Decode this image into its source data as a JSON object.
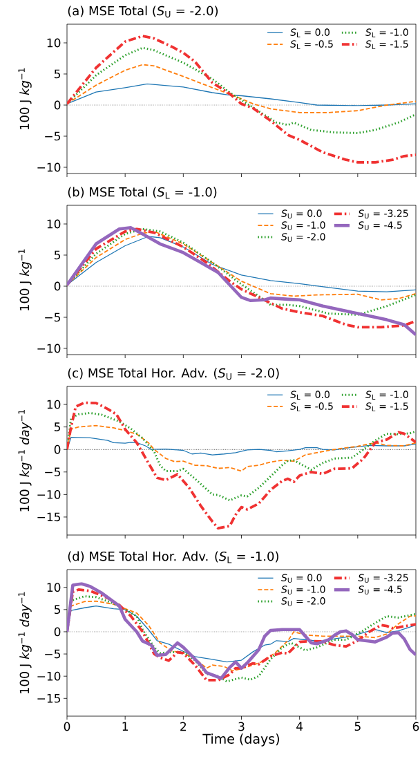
{
  "chart_data": [
    {
      "type": "line",
      "title": "(a) MSE Total (*S*$_{U}$ = -2.0)",
      "ylabel": "100 J *kg*$^{−1}$",
      "xlim": [
        0,
        6
      ],
      "xticks": [
        0,
        1,
        2,
        3,
        4,
        5,
        6
      ],
      "ylim": [
        -11,
        13
      ],
      "yticks": [
        {
          "value": -10,
          "label": "−10"
        },
        {
          "value": -5,
          "label": "−5"
        },
        0,
        5,
        10
      ],
      "tick_labels": "y",
      "legend": "top right",
      "grid": false,
      "ref_lines": [
        {
          "axis": "y",
          "value": 0,
          "color": "#000000",
          "line_style": "dotted"
        }
      ],
      "series": [
        {
          "name": "*S*$_{L}$ = 0.0",
          "color": "#1f77b4",
          "line_style": "solid",
          "x": [
            0,
            0.5,
            1.0,
            1.38,
            2.0,
            2.5,
            2.8,
            3.0,
            3.5,
            4.0,
            4.3,
            5.0,
            5.5,
            6.0
          ],
          "values": [
            0.2,
            2.1,
            2.8,
            3.4,
            2.9,
            2.0,
            1.6,
            1.5,
            1.0,
            0.4,
            0.0,
            -0.1,
            0.0,
            0.2
          ]
        },
        {
          "name": "*S*$_{L}$ = -0.5",
          "color": "#ff7f0e",
          "line_style": "dashed",
          "x": [
            0,
            0.5,
            1.0,
            1.3,
            1.5,
            2.0,
            2.5,
            2.9,
            3.2,
            3.5,
            4.0,
            4.5,
            5.0,
            5.5,
            6.0
          ],
          "values": [
            0.2,
            3.2,
            5.6,
            6.5,
            6.3,
            4.6,
            2.8,
            1.4,
            0.2,
            -0.6,
            -1.2,
            -1.2,
            -0.9,
            0.0,
            0.6
          ]
        },
        {
          "name": "*S*$_{L}$ = -1.0",
          "color": "#2ca02c",
          "line_style": "dotted",
          "x": [
            0,
            0.5,
            1.0,
            1.3,
            1.5,
            2.0,
            2.5,
            2.8,
            3.0,
            3.3,
            3.6,
            3.8,
            3.9,
            4.2,
            4.6,
            5.0,
            5.3,
            5.7,
            6.0
          ],
          "values": [
            0.2,
            4.8,
            8.0,
            9.2,
            8.8,
            6.8,
            4.2,
            2.0,
            0.8,
            -1.0,
            -2.8,
            -3.2,
            -2.8,
            -4.0,
            -4.4,
            -4.5,
            -4.0,
            -2.8,
            -1.5
          ]
        },
        {
          "name": "*S*$_{L}$ = -1.5",
          "color": "#f03232",
          "line_style": "dashdot",
          "x": [
            0,
            0.5,
            1.0,
            1.3,
            1.5,
            1.8,
            2.0,
            2.2,
            2.5,
            2.8,
            3.0,
            3.2,
            3.5,
            3.8,
            4.0,
            4.4,
            4.8,
            5.0,
            5.3,
            5.6,
            5.8,
            6.0
          ],
          "values": [
            0.2,
            6.0,
            10.2,
            11.1,
            10.7,
            9.4,
            8.4,
            7.0,
            3.6,
            1.8,
            0.2,
            -0.5,
            -2.5,
            -4.8,
            -5.6,
            -7.6,
            -8.8,
            -9.2,
            -9.2,
            -8.8,
            -8.2,
            -8.0
          ]
        }
      ]
    },
    {
      "type": "line",
      "title": "(b) MSE Total (*S*$_{L}$ = -1.0)",
      "ylabel": "100 J *kg*$^{−1}$",
      "xlim": [
        0,
        6
      ],
      "xticks": [
        0,
        1,
        2,
        3,
        4,
        5,
        6
      ],
      "ylim": [
        -11,
        13
      ],
      "yticks": [
        {
          "value": -10,
          "label": "−10"
        },
        {
          "value": -5,
          "label": "−5"
        },
        0,
        5,
        10
      ],
      "tick_labels": "y",
      "legend": "top right",
      "grid": false,
      "ref_lines": [
        {
          "axis": "y",
          "value": 0,
          "color": "#000000",
          "line_style": "dotted"
        }
      ],
      "series": [
        {
          "name": "*S*$_{U}$ = 0.0",
          "color": "#1f77b4",
          "line_style": "solid",
          "x": [
            0,
            0.5,
            1.0,
            1.4,
            1.6,
            2.0,
            2.5,
            3.0,
            3.5,
            4.0,
            4.5,
            5.0,
            5.5,
            6.0
          ],
          "values": [
            0.2,
            3.8,
            6.5,
            8.0,
            7.8,
            6.3,
            3.5,
            1.8,
            0.9,
            0.4,
            -0.2,
            -0.8,
            -0.9,
            -0.6
          ]
        },
        {
          "name": "*S*$_{U}$ = -1.0",
          "color": "#ff7f0e",
          "line_style": "dashed",
          "x": [
            0,
            0.5,
            1.0,
            1.3,
            1.5,
            2.0,
            2.5,
            3.0,
            3.5,
            3.9,
            4.3,
            5.0,
            5.4,
            5.7,
            6.0
          ],
          "values": [
            0.2,
            4.6,
            7.5,
            8.5,
            8.8,
            6.8,
            3.8,
            0.8,
            -1.2,
            -1.6,
            -1.4,
            -1.3,
            -2.2,
            -2.0,
            -1.2
          ]
        },
        {
          "name": "*S*$_{U}$ = -2.0",
          "color": "#2ca02c",
          "line_style": "dotted",
          "x": [
            0,
            0.5,
            1.0,
            1.3,
            1.6,
            2.0,
            2.5,
            2.9,
            3.0,
            3.3,
            3.5,
            3.8,
            4.0,
            4.5,
            5.0,
            5.5,
            6.0
          ],
          "values": [
            0.2,
            5.2,
            8.4,
            9.2,
            8.8,
            7.0,
            3.8,
            1.0,
            0.3,
            -1.6,
            -3.0,
            -3.0,
            -3.2,
            -4.4,
            -4.6,
            -3.2,
            -1.4
          ]
        },
        {
          "name": "*S*$_{U}$ = -3.25",
          "color": "#f03232",
          "line_style": "dashdot",
          "x": [
            0,
            0.5,
            1.0,
            1.2,
            1.5,
            2.0,
            2.4,
            2.8,
            3.0,
            3.3,
            3.7,
            4.0,
            4.4,
            4.8,
            5.0,
            5.4,
            5.8,
            6.0
          ],
          "values": [
            0.2,
            6.0,
            8.8,
            9.2,
            8.6,
            6.3,
            3.8,
            0.8,
            -0.5,
            -1.8,
            -3.6,
            -4.2,
            -4.8,
            -6.2,
            -6.6,
            -6.6,
            -6.3,
            -5.6
          ]
        },
        {
          "name": "*S*$_{U}$ = -4.5",
          "color": "#9467bd",
          "line_style": "solid",
          "x": [
            0,
            0.5,
            0.9,
            1.1,
            1.3,
            1.6,
            2.0,
            2.3,
            2.6,
            2.8,
            3.0,
            3.15,
            3.4,
            3.5,
            3.8,
            4.0,
            4.4,
            5.0,
            5.5,
            5.8,
            6.0
          ],
          "values": [
            0.2,
            6.8,
            9.2,
            9.4,
            8.4,
            6.8,
            5.4,
            3.8,
            2.2,
            0.2,
            -1.8,
            -2.3,
            -2.2,
            -1.9,
            -2.1,
            -2.2,
            -3.2,
            -4.4,
            -5.4,
            -6.2,
            -7.8
          ]
        }
      ]
    },
    {
      "type": "line",
      "title": "(c) MSE Total Hor. Adv. (*S*$_{U}$ = -2.0)",
      "ylabel": "100 J *kg*$^{−1}$ *day*$^{−1}$",
      "xlim": [
        0,
        6
      ],
      "xticks": [
        0,
        1,
        2,
        3,
        4,
        5,
        6
      ],
      "ylim": [
        -19,
        14
      ],
      "yticks": [
        {
          "value": -15,
          "label": "−15"
        },
        {
          "value": -10,
          "label": "−10"
        },
        {
          "value": -5,
          "label": "−5"
        },
        0,
        5,
        10
      ],
      "tick_labels": "y",
      "legend": "top right",
      "grid": false,
      "ref_lines": [
        {
          "axis": "y",
          "value": 0,
          "color": "#000000",
          "line_style": "dotted"
        }
      ],
      "series": [
        {
          "name": "*S*$_{L}$ = 0.0",
          "color": "#1f77b4",
          "line_style": "solid",
          "x": [
            0,
            0.07,
            0.4,
            0.7,
            0.8,
            1.0,
            1.1,
            1.2,
            1.35,
            1.45,
            1.7,
            2.0,
            2.15,
            2.3,
            2.5,
            2.7,
            2.9,
            3.1,
            3.3,
            3.5,
            3.6,
            3.8,
            4.0,
            4.1,
            4.3,
            4.4,
            4.6,
            4.8,
            5.0,
            5.2,
            5.5,
            5.8,
            6.0
          ],
          "values": [
            0,
            2.7,
            2.6,
            2.0,
            1.5,
            1.4,
            1.6,
            1.5,
            0.8,
            0.0,
            0.1,
            -0.2,
            -1.0,
            -0.8,
            -1.2,
            -1.0,
            -0.7,
            -0.1,
            0.0,
            -0.2,
            -0.5,
            -0.3,
            0.0,
            0.4,
            0.4,
            0.0,
            -0.1,
            0.3,
            0.6,
            0.9,
            0.8,
            0.8,
            1.2
          ]
        },
        {
          "name": "*S*$_{L}$ = -0.5",
          "color": "#ff7f0e",
          "line_style": "dashed",
          "x": [
            0,
            0.07,
            0.2,
            0.5,
            0.8,
            1.0,
            1.2,
            1.4,
            1.5,
            1.7,
            1.85,
            2.0,
            2.2,
            2.4,
            2.6,
            2.8,
            3.0,
            3.1,
            3.3,
            3.5,
            3.7,
            3.9,
            4.1,
            4.3,
            4.5,
            4.7,
            5.0,
            5.3,
            5.5,
            5.8,
            6.0
          ],
          "values": [
            0,
            4.5,
            5.0,
            5.3,
            4.8,
            4.2,
            3.4,
            1.5,
            0.0,
            -2.0,
            -2.7,
            -2.6,
            -3.5,
            -3.6,
            -4.2,
            -4.0,
            -4.8,
            -3.8,
            -3.5,
            -2.8,
            -2.4,
            -2.6,
            -1.2,
            -0.7,
            -0.2,
            0.2,
            0.7,
            1.5,
            0.9,
            0.8,
            1.5
          ]
        },
        {
          "name": "*S*$_{L}$ = -1.0",
          "color": "#2ca02c",
          "line_style": "dotted",
          "x": [
            0,
            0.07,
            0.2,
            0.4,
            0.6,
            0.9,
            1.1,
            1.3,
            1.5,
            1.6,
            1.7,
            1.9,
            2.0,
            2.2,
            2.5,
            2.6,
            2.8,
            3.0,
            3.1,
            3.3,
            3.5,
            3.7,
            3.8,
            3.9,
            4.1,
            4.2,
            4.4,
            4.6,
            4.9,
            5.1,
            5.3,
            5.5,
            5.7,
            5.9,
            6.0
          ],
          "values": [
            0,
            7.0,
            7.8,
            8.1,
            7.7,
            6.2,
            4.6,
            2.5,
            -0.5,
            -3.5,
            -4.8,
            -4.8,
            -4.3,
            -6.5,
            -10.0,
            -10.1,
            -11.3,
            -10.2,
            -10.4,
            -8.5,
            -6.0,
            -3.5,
            -2.5,
            -2.4,
            -3.8,
            -4.5,
            -3.0,
            -2.0,
            -1.8,
            0.0,
            2.0,
            3.5,
            3.4,
            3.6,
            4.0
          ]
        },
        {
          "name": "*S*$_{L}$ = -1.5",
          "color": "#f03232",
          "line_style": "dashdot",
          "x": [
            0,
            0.07,
            0.15,
            0.3,
            0.5,
            0.7,
            0.85,
            1.0,
            1.2,
            1.4,
            1.55,
            1.7,
            1.9,
            2.1,
            2.3,
            2.5,
            2.6,
            2.8,
            2.9,
            3.0,
            3.1,
            3.3,
            3.5,
            3.7,
            3.8,
            3.9,
            4.0,
            4.2,
            4.4,
            4.6,
            4.9,
            5.1,
            5.3,
            5.5,
            5.7,
            5.8,
            6.0
          ],
          "values": [
            0,
            5.0,
            9.5,
            10.4,
            10.3,
            9.0,
            7.8,
            4.5,
            1.5,
            -3.0,
            -6.3,
            -6.8,
            -5.5,
            -8.5,
            -12.5,
            -16.0,
            -17.5,
            -17.0,
            -14.5,
            -12.8,
            -13.3,
            -12.0,
            -9.0,
            -7.0,
            -6.5,
            -7.2,
            -5.8,
            -5.0,
            -5.4,
            -4.3,
            -4.2,
            -2.0,
            1.5,
            2.2,
            3.8,
            3.5,
            1.6
          ]
        }
      ]
    },
    {
      "type": "line",
      "title": "(d) MSE Total Hor. Adv. (*S*$_{L}$ = -1.0)",
      "xlabel": "Time (days)",
      "ylabel": "100 J *kg*$^{−1}$ *day*$^{−1}$",
      "xlim": [
        0,
        6
      ],
      "xticks": [
        0,
        1,
        2,
        3,
        4,
        5,
        6
      ],
      "ylim": [
        -19,
        14
      ],
      "yticks": [
        {
          "value": -15,
          "label": "−15"
        },
        {
          "value": -10,
          "label": "−10"
        },
        {
          "value": -5,
          "label": "−5"
        },
        0,
        5,
        10
      ],
      "legend": "top right",
      "grid": false,
      "ref_lines": [
        {
          "axis": "y",
          "value": 0,
          "color": "#000000",
          "line_style": "dotted"
        }
      ],
      "series": [
        {
          "name": "*S*$_{U}$ = 0.0",
          "color": "#1f77b4",
          "line_style": "solid",
          "x": [
            0,
            0.07,
            0.3,
            0.5,
            0.8,
            1.0,
            1.2,
            1.4,
            1.55,
            1.75,
            2.0,
            2.2,
            2.5,
            2.75,
            3.0,
            3.2,
            3.4,
            3.5,
            3.6,
            3.8,
            3.9,
            4.1,
            4.4,
            4.6,
            4.9,
            5.1,
            5.3,
            5.5,
            5.7,
            6.0
          ],
          "values": [
            0,
            4.8,
            5.4,
            5.8,
            5.2,
            5.0,
            3.5,
            0.5,
            -2.0,
            -2.8,
            -4.4,
            -5.6,
            -6.2,
            -6.8,
            -6.4,
            -4.5,
            -3.0,
            -2.8,
            -2.0,
            -2.2,
            -1.5,
            -1.8,
            -2.2,
            -1.6,
            -1.0,
            -0.2,
            0.5,
            -0.2,
            0.2,
            1.5
          ]
        },
        {
          "name": "*S*$_{U}$ = -1.0",
          "color": "#ff7f0e",
          "line_style": "dashed",
          "x": [
            0,
            0.07,
            0.3,
            0.5,
            0.8,
            1.0,
            1.2,
            1.4,
            1.6,
            1.8,
            2.0,
            2.2,
            2.4,
            2.5,
            2.7,
            2.85,
            3.0,
            3.2,
            3.4,
            3.6,
            3.8,
            3.9,
            4.1,
            4.4,
            4.7,
            5.0,
            5.3,
            5.5,
            5.7,
            5.9,
            6.0
          ],
          "values": [
            0,
            5.8,
            6.8,
            6.9,
            6.2,
            5.2,
            4.2,
            1.5,
            -2.5,
            -4.3,
            -4.8,
            -6.0,
            -8.2,
            -7.5,
            -7.8,
            -8.8,
            -8.3,
            -7.5,
            -6.5,
            -4.5,
            -2.0,
            0.0,
            -0.7,
            -1.0,
            -1.0,
            -1.0,
            -1.3,
            -0.5,
            1.8,
            3.5,
            3.6
          ]
        },
        {
          "name": "*S*$_{U}$ = -2.0",
          "color": "#2ca02c",
          "line_style": "dotted",
          "x": [
            0,
            0.07,
            0.3,
            0.5,
            0.8,
            1.0,
            1.2,
            1.3,
            1.5,
            1.6,
            1.8,
            2.0,
            2.2,
            2.4,
            2.6,
            2.75,
            3.0,
            3.15,
            3.3,
            3.5,
            3.7,
            3.85,
            4.1,
            4.3,
            4.6,
            4.8,
            5.1,
            5.3,
            5.5,
            5.7,
            6.0
          ],
          "values": [
            0,
            7.0,
            8.0,
            7.8,
            6.4,
            5.0,
            3.5,
            0.5,
            -3.5,
            -4.8,
            -4.6,
            -4.6,
            -6.4,
            -9.5,
            -10.0,
            -11.2,
            -10.3,
            -10.8,
            -10.0,
            -6.2,
            -3.5,
            -2.5,
            -4.2,
            -3.5,
            -1.8,
            -1.8,
            0.3,
            2.0,
            3.5,
            3.2,
            4.0
          ]
        },
        {
          "name": "*S*$_{U}$ = -3.25",
          "color": "#f03232",
          "line_style": "dashdot",
          "x": [
            0,
            0.1,
            0.2,
            0.4,
            0.7,
            0.9,
            1.1,
            1.3,
            1.5,
            1.6,
            1.75,
            1.9,
            2.0,
            2.2,
            2.4,
            2.6,
            2.8,
            2.9,
            3.0,
            3.2,
            3.3,
            3.5,
            3.7,
            3.8,
            4.0,
            4.2,
            4.4,
            4.6,
            4.8,
            5.0,
            5.2,
            5.4,
            5.5,
            5.6,
            5.7,
            6.0
          ],
          "values": [
            0,
            9.0,
            9.5,
            9.2,
            7.6,
            6.0,
            3.5,
            0.0,
            -5.0,
            -5.8,
            -6.5,
            -4.6,
            -4.8,
            -7.5,
            -10.9,
            -10.9,
            -9.6,
            -8.2,
            -8.2,
            -7.1,
            -7.3,
            -5.5,
            -4.7,
            -4.9,
            -2.3,
            -2.1,
            -2.2,
            -3.0,
            -3.3,
            -2.0,
            0.0,
            1.5,
            1.3,
            0.8,
            1.0,
            1.7
          ]
        },
        {
          "name": "*S*$_{U}$ = -4.5",
          "color": "#9467bd",
          "line_style": "solid",
          "x": [
            0,
            0.1,
            0.25,
            0.4,
            0.6,
            0.9,
            1.0,
            1.2,
            1.3,
            1.45,
            1.55,
            1.7,
            1.9,
            2.0,
            2.1,
            2.3,
            2.4,
            2.6,
            2.65,
            2.8,
            2.9,
            3.0,
            3.1,
            3.3,
            3.4,
            3.5,
            3.7,
            4.0,
            4.1,
            4.2,
            4.3,
            4.5,
            4.6,
            4.7,
            4.8,
            4.9,
            5.0,
            5.2,
            5.3,
            5.5,
            5.6,
            5.7,
            5.8,
            5.9,
            6.0
          ],
          "values": [
            0,
            10.5,
            10.8,
            10.2,
            8.7,
            5.8,
            2.8,
            0.0,
            -2.1,
            -3.0,
            -5.3,
            -5.1,
            -2.5,
            -3.5,
            -4.8,
            -7.5,
            -9.2,
            -10.2,
            -10.5,
            -8.0,
            -6.8,
            -8.2,
            -7.0,
            -4.0,
            -1.0,
            0.3,
            0.5,
            0.5,
            -1.0,
            -2.5,
            -2.7,
            -1.8,
            -0.8,
            0.0,
            0.2,
            -0.6,
            -1.8,
            -2.1,
            -2.3,
            -1.2,
            -0.3,
            -0.2,
            -1.6,
            -4.0,
            -5.2
          ]
        }
      ]
    }
  ]
}
